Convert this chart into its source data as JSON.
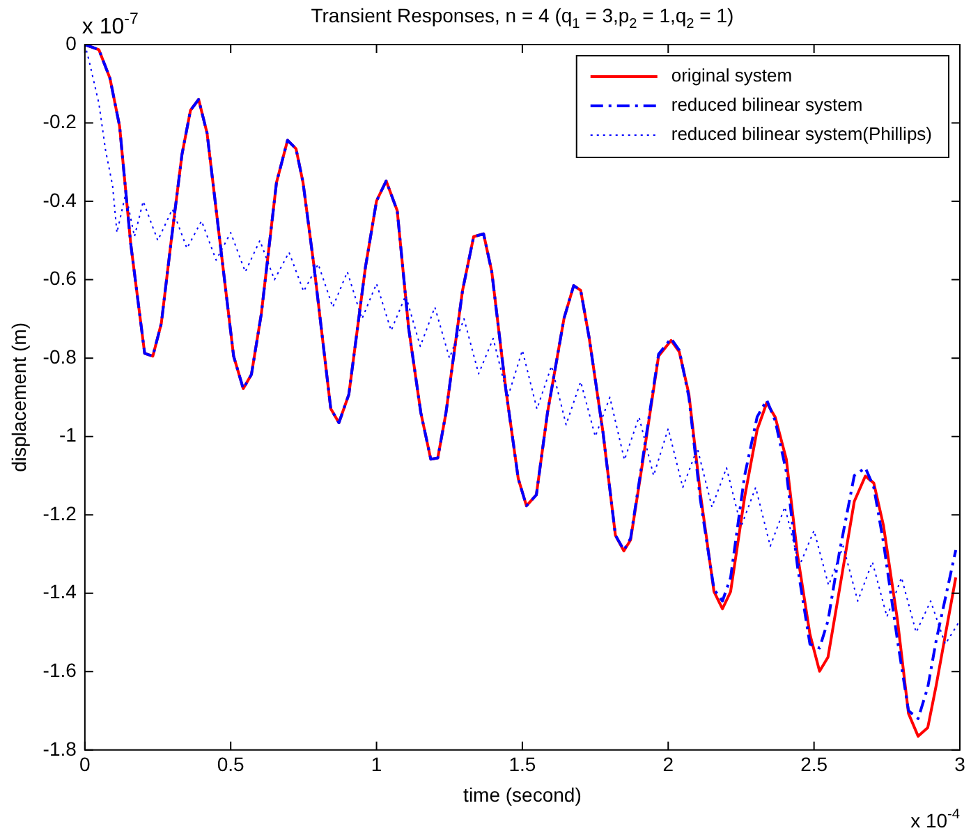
{
  "chart_data": {
    "type": "line",
    "title": "Transient Responses, n = 4 (q$_{1}$ = 3,p$_{2}$ = 1,q$_{2}$ = 1)",
    "xlabel": "time (second)",
    "ylabel": "displacement (m)",
    "annotations": [
      "x 10$^{-7}$",
      "x 10$^{-4}$"
    ],
    "x": [
      0,
      0.048,
      0.086,
      0.119,
      0.157,
      0.205,
      0.233,
      0.262,
      0.295,
      0.333,
      0.362,
      0.39,
      0.419,
      0.462,
      0.51,
      0.543,
      0.571,
      0.605,
      0.657,
      0.695,
      0.724,
      0.748,
      0.786,
      0.843,
      0.871,
      0.905,
      0.962,
      1.0,
      1.033,
      1.071,
      1.11,
      1.152,
      1.186,
      1.21,
      1.238,
      1.295,
      1.333,
      1.367,
      1.395,
      1.443,
      1.486,
      1.514,
      1.548,
      1.586,
      1.643,
      1.676,
      1.7,
      1.729,
      1.776,
      1.819,
      1.848,
      1.871,
      1.914,
      1.967,
      2.01,
      2.038,
      2.071,
      2.11,
      2.157,
      2.186,
      2.214,
      2.262,
      2.305,
      2.338,
      2.367,
      2.405,
      2.443,
      2.486,
      2.519,
      2.548,
      2.586,
      2.638,
      2.676,
      2.705,
      2.738,
      2.786,
      2.824,
      2.857,
      2.89,
      2.919,
      2.986
    ],
    "series": [
      {
        "name": "original system",
        "color": "#ff0000",
        "line_style": "solid",
        "values": [
          0,
          -0.013,
          -0.086,
          -0.208,
          -0.507,
          -0.788,
          -0.795,
          -0.712,
          -0.507,
          -0.28,
          -0.168,
          -0.14,
          -0.226,
          -0.496,
          -0.795,
          -0.878,
          -0.842,
          -0.687,
          -0.352,
          -0.244,
          -0.266,
          -0.352,
          -0.568,
          -0.929,
          -0.965,
          -0.893,
          -0.568,
          -0.399,
          -0.348,
          -0.424,
          -0.723,
          -0.94,
          -1.058,
          -1.055,
          -0.94,
          -0.627,
          -0.49,
          -0.483,
          -0.579,
          -0.878,
          -1.108,
          -1.177,
          -1.149,
          -0.94,
          -0.698,
          -0.615,
          -0.627,
          -0.748,
          -0.987,
          -1.252,
          -1.292,
          -1.264,
          -1.058,
          -0.795,
          -0.755,
          -0.784,
          -0.892,
          -1.144,
          -1.396,
          -1.44,
          -1.396,
          -1.155,
          -0.983,
          -0.914,
          -0.951,
          -1.058,
          -1.3,
          -1.505,
          -1.599,
          -1.563,
          -1.396,
          -1.166,
          -1.101,
          -1.119,
          -1.227,
          -1.468,
          -1.707,
          -1.765,
          -1.743,
          -1.635,
          -1.36
        ]
      },
      {
        "name": "reduced bilinear system",
        "color": "#0000ff",
        "line_style": "dashed",
        "values": [
          0,
          -0.013,
          -0.086,
          -0.208,
          -0.507,
          -0.788,
          -0.795,
          -0.712,
          -0.507,
          -0.28,
          -0.168,
          -0.14,
          -0.226,
          -0.496,
          -0.795,
          -0.878,
          -0.842,
          -0.687,
          -0.352,
          -0.244,
          -0.266,
          -0.352,
          -0.568,
          -0.929,
          -0.965,
          -0.893,
          -0.568,
          -0.399,
          -0.348,
          -0.424,
          -0.723,
          -0.94,
          -1.058,
          -1.055,
          -0.94,
          -0.627,
          -0.49,
          -0.483,
          -0.579,
          -0.878,
          -1.108,
          -1.177,
          -1.149,
          -0.94,
          -0.698,
          -0.615,
          -0.627,
          -0.748,
          -0.987,
          -1.252,
          -1.29,
          -1.26,
          -1.05,
          -0.79,
          -0.75,
          -0.78,
          -0.9,
          -1.16,
          -1.39,
          -1.42,
          -1.36,
          -1.1,
          -0.95,
          -0.907,
          -0.96,
          -1.09,
          -1.33,
          -1.53,
          -1.54,
          -1.47,
          -1.3,
          -1.1,
          -1.08,
          -1.13,
          -1.27,
          -1.52,
          -1.7,
          -1.72,
          -1.64,
          -1.52,
          -1.29
        ]
      },
      {
        "name": "reduced bilinear system(Phillips)",
        "color": "#0000ff",
        "line_style": "dotted",
        "x": [
          0,
          0.014,
          0.048,
          0.071,
          0.095,
          0.11,
          0.14,
          0.17,
          0.2,
          0.25,
          0.3,
          0.35,
          0.4,
          0.45,
          0.5,
          0.55,
          0.6,
          0.65,
          0.7,
          0.75,
          0.8,
          0.85,
          0.9,
          0.95,
          1.0,
          1.05,
          1.1,
          1.15,
          1.2,
          1.25,
          1.3,
          1.35,
          1.4,
          1.45,
          1.5,
          1.55,
          1.6,
          1.65,
          1.7,
          1.75,
          1.8,
          1.85,
          1.9,
          1.95,
          2.0,
          2.05,
          2.1,
          2.15,
          2.2,
          2.25,
          2.3,
          2.35,
          2.4,
          2.45,
          2.5,
          2.55,
          2.6,
          2.65,
          2.7,
          2.75,
          2.8,
          2.85,
          2.9,
          2.95,
          3.0
        ],
        "values": [
          0,
          -0.04,
          -0.15,
          -0.27,
          -0.36,
          -0.48,
          -0.38,
          -0.49,
          -0.4,
          -0.5,
          -0.42,
          -0.52,
          -0.45,
          -0.55,
          -0.48,
          -0.58,
          -0.5,
          -0.6,
          -0.53,
          -0.63,
          -0.56,
          -0.67,
          -0.58,
          -0.7,
          -0.61,
          -0.73,
          -0.64,
          -0.77,
          -0.67,
          -0.8,
          -0.7,
          -0.84,
          -0.75,
          -0.9,
          -0.78,
          -0.93,
          -0.82,
          -0.97,
          -0.86,
          -1.0,
          -0.9,
          -1.06,
          -0.95,
          -1.1,
          -0.98,
          -1.13,
          -1.03,
          -1.18,
          -1.08,
          -1.23,
          -1.13,
          -1.28,
          -1.18,
          -1.33,
          -1.24,
          -1.38,
          -1.28,
          -1.42,
          -1.32,
          -1.46,
          -1.36,
          -1.5,
          -1.42,
          -1.53,
          -1.47
        ]
      }
    ],
    "xlim": [
      0,
      3
    ],
    "xticks": [
      0,
      0.5,
      1,
      1.5,
      2,
      2.5,
      3
    ],
    "ylim": [
      -1.8,
      0
    ],
    "yticks": [
      -1.8,
      -1.6,
      -1.4,
      -1.2,
      -1,
      -0.8,
      -0.6,
      -0.4,
      -0.2,
      0
    ],
    "grid": false,
    "legend": "top right",
    "marker": "none"
  }
}
